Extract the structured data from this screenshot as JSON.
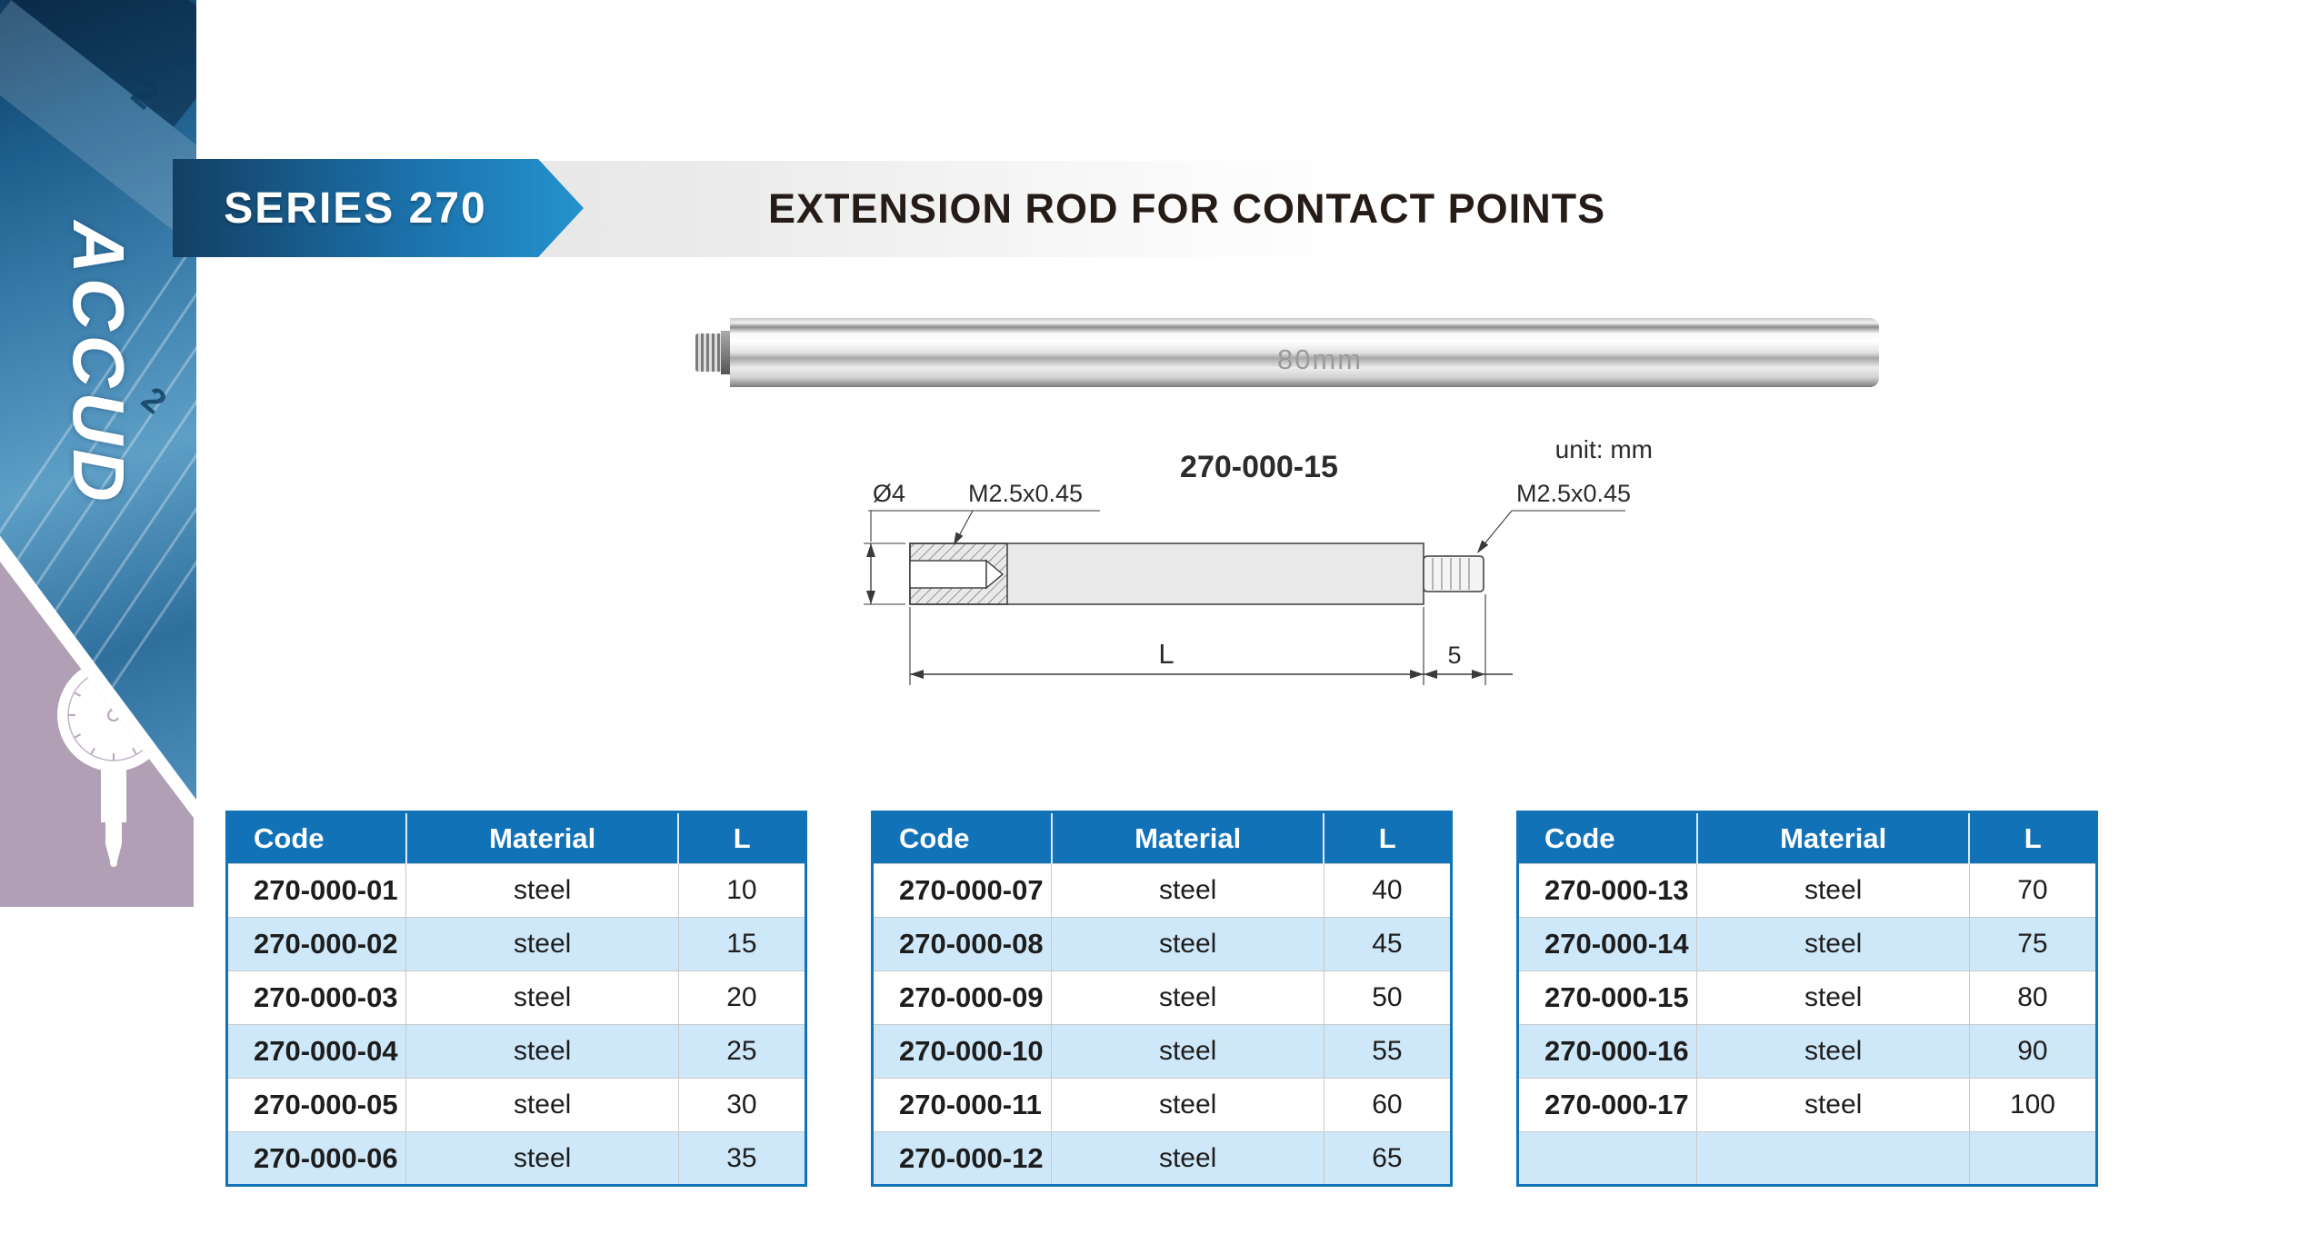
{
  "sidebar": {
    "logo": "ACCUD",
    "photo_numerals": [
      "2",
      "2"
    ],
    "colors": {
      "photo_blue": "#3f82b0",
      "purple": "#b1a0b5"
    }
  },
  "header": {
    "series_label": "SERIES 270",
    "title": "EXTENSION ROD FOR CONTACT POINTS",
    "banner_colors": [
      "#133f63",
      "#1b6fa8",
      "#2493cf"
    ],
    "strip_color": "#e0e0e0"
  },
  "product_photo": {
    "engraving": "80mm"
  },
  "diagram": {
    "model": "270-000-15",
    "unit_note": "unit: mm",
    "labels": {
      "diameter": "Ø4",
      "thread_left": "M2.5x0.45",
      "thread_right": "M2.5x0.45",
      "length": "L",
      "tip_length": "5"
    }
  },
  "tables": {
    "headers": [
      "Code",
      "Material",
      "L"
    ],
    "accent_color": "#1272b8",
    "alt_row_color": "#cfe8f9",
    "groups": [
      {
        "rows": [
          [
            "270-000-01",
            "steel",
            "10"
          ],
          [
            "270-000-02",
            "steel",
            "15"
          ],
          [
            "270-000-03",
            "steel",
            "20"
          ],
          [
            "270-000-04",
            "steel",
            "25"
          ],
          [
            "270-000-05",
            "steel",
            "30"
          ],
          [
            "270-000-06",
            "steel",
            "35"
          ]
        ]
      },
      {
        "rows": [
          [
            "270-000-07",
            "steel",
            "40"
          ],
          [
            "270-000-08",
            "steel",
            "45"
          ],
          [
            "270-000-09",
            "steel",
            "50"
          ],
          [
            "270-000-10",
            "steel",
            "55"
          ],
          [
            "270-000-11",
            "steel",
            "60"
          ],
          [
            "270-000-12",
            "steel",
            "65"
          ]
        ]
      },
      {
        "rows": [
          [
            "270-000-13",
            "steel",
            "70"
          ],
          [
            "270-000-14",
            "steel",
            "75"
          ],
          [
            "270-000-15",
            "steel",
            "80"
          ],
          [
            "270-000-16",
            "steel",
            "90"
          ],
          [
            "270-000-17",
            "steel",
            "100"
          ],
          [
            "",
            "",
            ""
          ]
        ]
      }
    ]
  }
}
